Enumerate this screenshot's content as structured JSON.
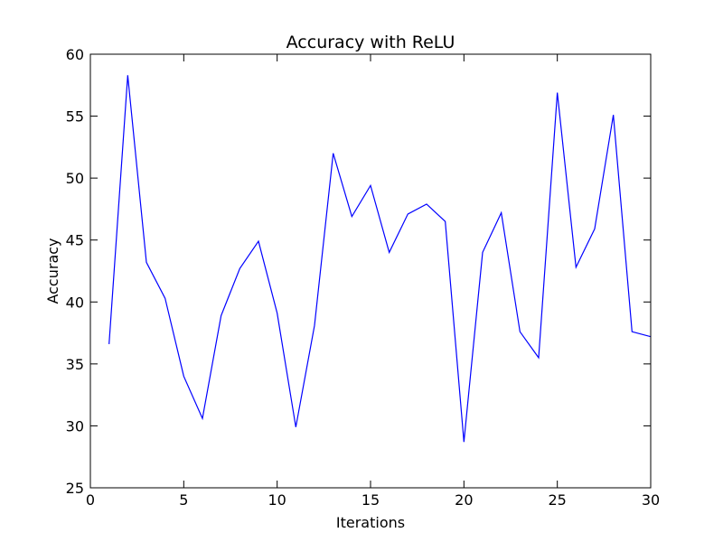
{
  "chart_data": {
    "type": "line",
    "title": "Accuracy with ReLU",
    "xlabel": "Iterations",
    "ylabel": "Accuracy",
    "xlim": [
      0,
      30
    ],
    "ylim": [
      25,
      60
    ],
    "xticks": [
      "0",
      "5",
      "10",
      "15",
      "20",
      "25",
      "30"
    ],
    "yticks": [
      "25",
      "30",
      "35",
      "40",
      "45",
      "50",
      "55",
      "60"
    ],
    "grid": false,
    "line_color": "#0000ff",
    "x": [
      1,
      2,
      3,
      4,
      5,
      6,
      7,
      8,
      9,
      10,
      11,
      12,
      13,
      14,
      15,
      16,
      17,
      18,
      19,
      20,
      21,
      22,
      23,
      24,
      25,
      26,
      27,
      28,
      29,
      30
    ],
    "series": [
      {
        "values": [
          36.6,
          58.3,
          43.2,
          40.3,
          34.0,
          30.6,
          38.9,
          42.7,
          44.9,
          39.1,
          29.9,
          38.1,
          52.0,
          46.9,
          49.4,
          44.0,
          47.1,
          47.9,
          46.5,
          28.7,
          44.0,
          47.2,
          37.6,
          35.5,
          56.9,
          42.8,
          45.9,
          55.1,
          37.6,
          37.2
        ]
      }
    ]
  }
}
